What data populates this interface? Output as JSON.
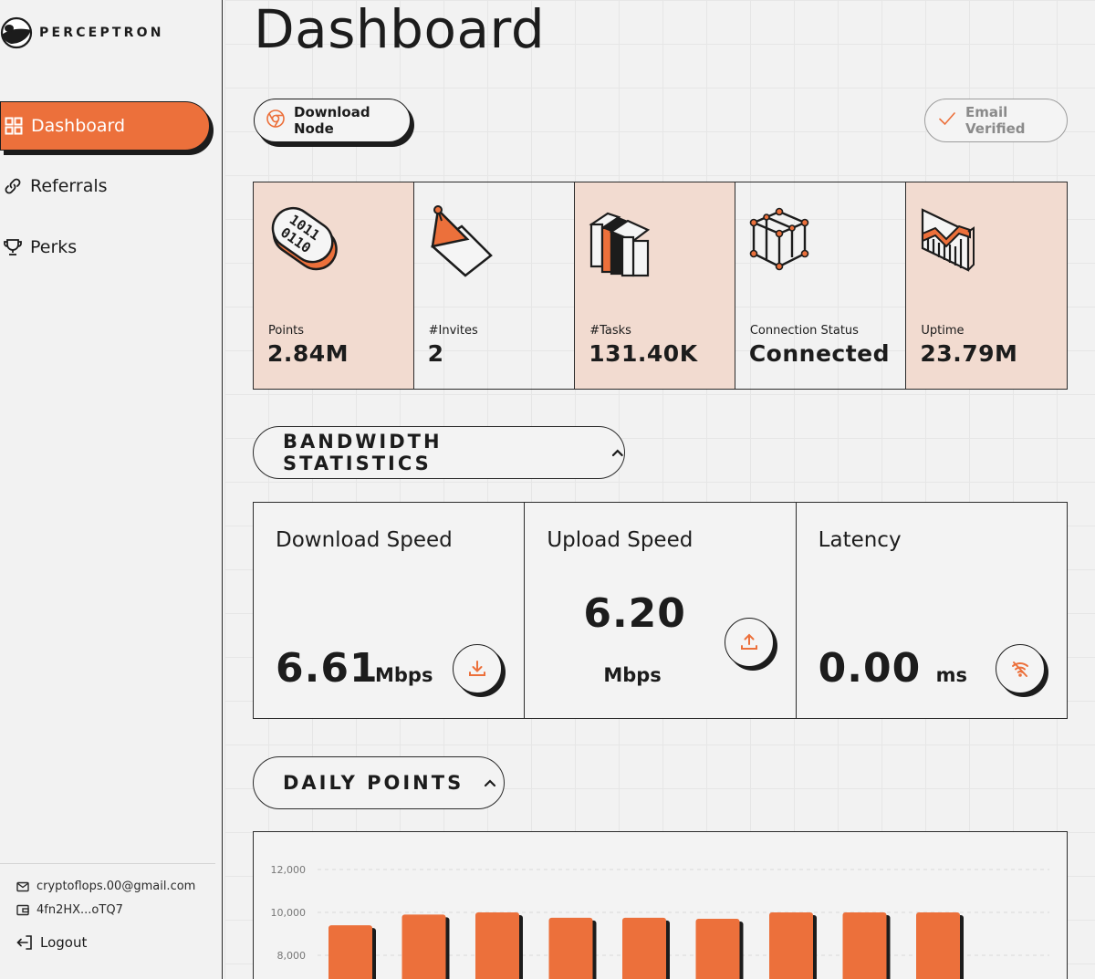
{
  "brand": {
    "name": "PERCEPTRON"
  },
  "sidebar": {
    "items": [
      {
        "label": "Dashboard",
        "icon": "grid-icon",
        "active": true
      },
      {
        "label": "Referrals",
        "icon": "link-icon",
        "active": false
      },
      {
        "label": "Perks",
        "icon": "trophy-icon",
        "active": false
      }
    ],
    "email": "cryptoflops.00@gmail.com",
    "wallet": "4fn2HX...oTQ7",
    "logout_label": "Logout"
  },
  "header": {
    "title": "Dashboard",
    "download_node_label": "Download Node",
    "email_verified_label": "Email Verified"
  },
  "stats": [
    {
      "label": "Points",
      "value": "2.84M",
      "icon": "binary-capsule-icon"
    },
    {
      "label": "#Invites",
      "value": "2",
      "icon": "envelope-icon"
    },
    {
      "label": "#Tasks",
      "value": "131.40K",
      "icon": "books-icon"
    },
    {
      "label": "Connection Status",
      "value": "Connected",
      "icon": "cube-network-icon"
    },
    {
      "label": "Uptime",
      "value": "23.79M",
      "icon": "chart-growth-icon"
    }
  ],
  "bandwidth": {
    "header": "BANDWIDTH STATISTICS",
    "download": {
      "title": "Download Speed",
      "value": "6.61",
      "unit": "Mbps"
    },
    "upload": {
      "title": "Upload Speed",
      "value": "6.20",
      "unit": "Mbps"
    },
    "latency": {
      "title": "Latency",
      "value": "0.00",
      "unit": "ms"
    }
  },
  "daily_points": {
    "header": "DAILY POINTS"
  },
  "colors": {
    "accent": "#ec703b",
    "tint": "#f2dbd0",
    "ink": "#1c1c1c"
  },
  "chart_data": {
    "type": "bar",
    "title": "",
    "xlabel": "",
    "ylabel": "",
    "y_ticks": [
      "12,000",
      "10,000",
      "8,000"
    ],
    "tick_values": [
      12000,
      10000,
      8000
    ],
    "values": [
      9400,
      9900,
      10000,
      9750,
      9750,
      9700,
      10000,
      10000,
      10000
    ],
    "ylim": [
      8000,
      12000
    ],
    "grid": true
  }
}
